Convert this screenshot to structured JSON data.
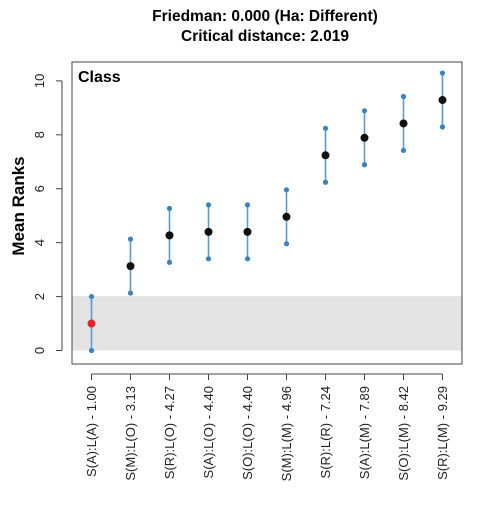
{
  "chart_data": {
    "type": "scatter",
    "title": "Friedman: 0.000 (Ha: Different)",
    "subtitle": "Critical distance: 2.019",
    "ylabel": "Mean Ranks",
    "xlabel": "",
    "annotation": "Class",
    "ylim": [
      -0.5,
      10.7
    ],
    "yticks": [
      0,
      2,
      4,
      6,
      8,
      10
    ],
    "grid": false,
    "critical_band": [
      0,
      2.019
    ],
    "categories": [
      "S(A):L(A) - 1.00",
      "S(M):L(O) - 3.13",
      "S(R):L(O) - 4.27",
      "S(A):L(O) - 4.40",
      "S(O):L(O) - 4.40",
      "S(M):L(M) - 4.96",
      "S(R):L(R) - 7.24",
      "S(A):L(M) - 7.89",
      "S(O):L(M) - 8.42",
      "S(R):L(M) - 9.29"
    ],
    "values": [
      1.0,
      3.13,
      4.27,
      4.4,
      4.4,
      4.96,
      7.24,
      7.89,
      8.42,
      9.29
    ],
    "lower": [
      0.0,
      2.13,
      3.27,
      3.4,
      3.4,
      3.96,
      6.24,
      6.89,
      7.42,
      8.29
    ],
    "upper": [
      2.0,
      4.13,
      5.27,
      5.4,
      5.4,
      5.96,
      8.24,
      8.89,
      9.42,
      10.29
    ],
    "highlight_index": 0
  },
  "colors": {
    "band": "#e3e3e3",
    "interval": "#5b9bd5",
    "interval_end": "#3a82c0",
    "point": "#111111",
    "highlight_point": "#e0242a",
    "frame": "#444444"
  }
}
